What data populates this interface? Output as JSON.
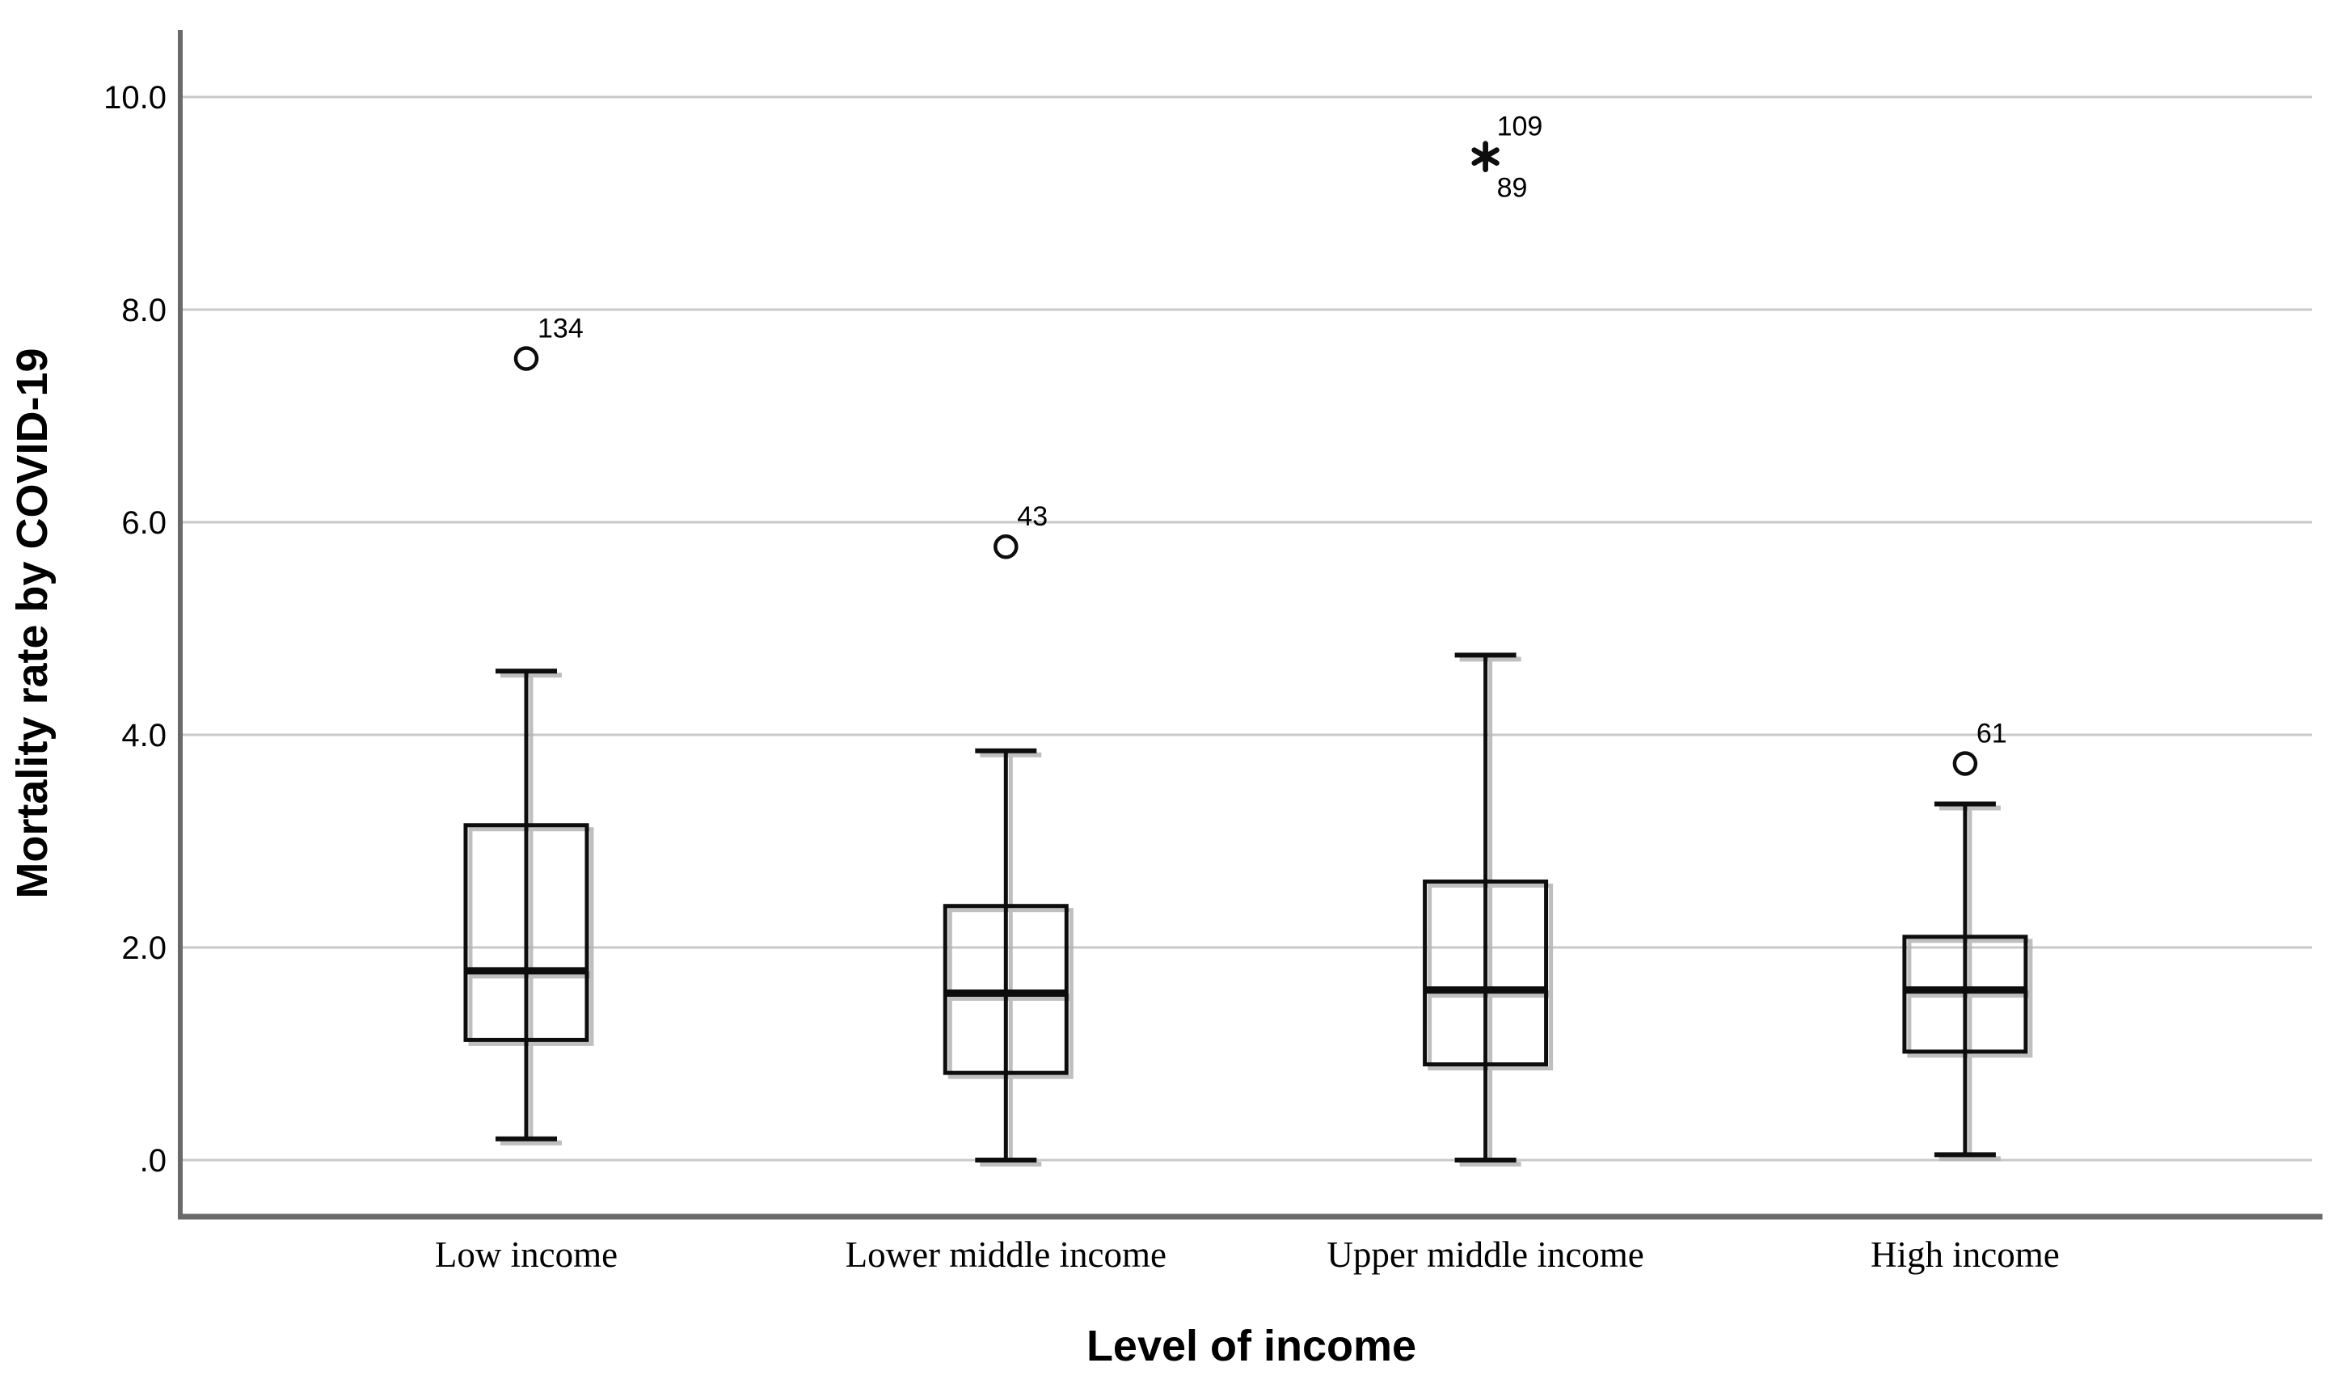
{
  "chart_data": {
    "type": "box",
    "title": "",
    "xlabel": "Level of income",
    "ylabel": "Mortality rate by COVID-19",
    "grid": "horizontal-light",
    "legend": false,
    "ylim": [
      -0.55,
      10.65
    ],
    "yticks": [
      {
        "label": ".0",
        "value": 0
      },
      {
        "label": "2.0",
        "value": 2
      },
      {
        "label": "4.0",
        "value": 4
      },
      {
        "label": "6.0",
        "value": 6
      },
      {
        "label": "8.0",
        "value": 8
      },
      {
        "label": "10.0",
        "value": 10
      }
    ],
    "categories": [
      {
        "label": "Low income",
        "min": 0.2,
        "q1": 1.13,
        "median": 1.78,
        "q3": 3.15,
        "max": 4.6,
        "outliers": [
          {
            "label": "134",
            "value": 7.54,
            "marker": "circle",
            "label_pos": "above"
          }
        ]
      },
      {
        "label": "Lower middle income",
        "min": 0.0,
        "q1": 0.82,
        "median": 1.57,
        "q3": 2.39,
        "max": 3.85,
        "outliers": [
          {
            "label": "43",
            "value": 5.77,
            "marker": "circle",
            "label_pos": "above"
          }
        ]
      },
      {
        "label": "Upper middle income",
        "min": 0.0,
        "q1": 0.9,
        "median": 1.6,
        "q3": 2.62,
        "max": 4.75,
        "outliers": [
          {
            "label": "109",
            "value": 9.44,
            "marker": "asterisk",
            "label_pos": "above"
          },
          {
            "label": "89",
            "value": 9.44,
            "marker": "asterisk",
            "label_pos": "below"
          }
        ]
      },
      {
        "label": "High income",
        "min": 0.05,
        "q1": 1.02,
        "median": 1.6,
        "q3": 2.1,
        "max": 3.35,
        "outliers": [
          {
            "label": "61",
            "value": 3.73,
            "marker": "circle",
            "label_pos": "above"
          }
        ]
      }
    ],
    "colors": {
      "axis": "#6a6a6a",
      "grid": "#c9c9c9",
      "box": "#0d0d0d",
      "shadow": "#b4b4b4",
      "text": "#000000",
      "background": "#ffffff"
    }
  }
}
